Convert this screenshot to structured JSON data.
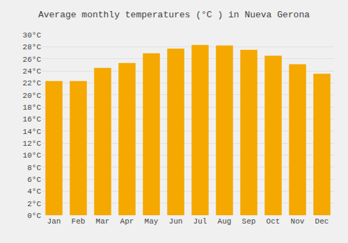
{
  "chart_data": {
    "type": "bar",
    "title": "Average monthly temperatures (°C ) in Nueva Gerona",
    "categories": [
      "Jan",
      "Feb",
      "Mar",
      "Apr",
      "May",
      "Jun",
      "Jul",
      "Aug",
      "Sep",
      "Oct",
      "Nov",
      "Dec"
    ],
    "values": [
      22.3,
      22.3,
      24.5,
      25.3,
      26.9,
      27.7,
      28.3,
      28.2,
      27.5,
      26.5,
      25.1,
      23.5
    ],
    "color": "#F5A800",
    "ylim": [
      0,
      30
    ],
    "yticks": [
      {
        "value": 0,
        "label": "0°C"
      },
      {
        "value": 2,
        "label": "2°C"
      },
      {
        "value": 4,
        "label": "4°C"
      },
      {
        "value": 6,
        "label": "6°C"
      },
      {
        "value": 8,
        "label": "8°C"
      },
      {
        "value": 10,
        "label": "10°C"
      },
      {
        "value": 12,
        "label": "12°C"
      },
      {
        "value": 14,
        "label": "14°C"
      },
      {
        "value": 16,
        "label": "16°C"
      },
      {
        "value": 18,
        "label": "18°C"
      },
      {
        "value": 20,
        "label": "20°C"
      },
      {
        "value": 22,
        "label": "22°C"
      },
      {
        "value": 24,
        "label": "24°C"
      },
      {
        "value": 26,
        "label": "26°C"
      },
      {
        "value": 28,
        "label": "28°C"
      },
      {
        "value": 30,
        "label": "30°C"
      }
    ],
    "grid": true
  }
}
